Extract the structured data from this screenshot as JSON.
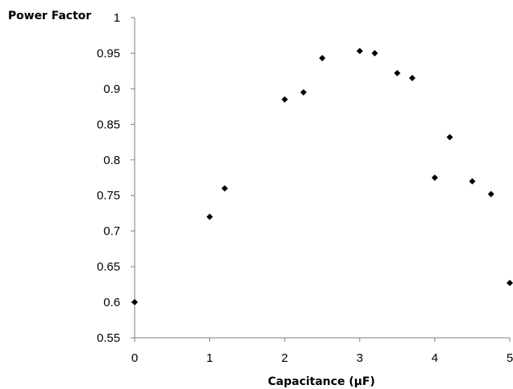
{
  "chart_data": {
    "type": "scatter",
    "title": "",
    "xlabel": "Capacitance (µF)",
    "ylabel": "Power Factor",
    "xlim": [
      0,
      5
    ],
    "ylim": [
      0.55,
      1
    ],
    "x_ticks": [
      0,
      1,
      2,
      3,
      4,
      5
    ],
    "x_tick_labels": [
      "0",
      "1",
      "2",
      "3",
      "4",
      "5"
    ],
    "y_ticks": [
      0.55,
      0.6,
      0.65,
      0.7,
      0.75,
      0.8,
      0.85,
      0.9,
      0.95,
      1
    ],
    "y_tick_labels": [
      "0.55",
      "0.6",
      "0.65",
      "0.7",
      "0.75",
      "0.8",
      "0.85",
      "0.9",
      "0.95",
      "1"
    ],
    "grid": false,
    "legend": false,
    "series": [
      {
        "marker": "diamond",
        "color": "#000000",
        "points": [
          {
            "x": 0,
            "y": 0.6
          },
          {
            "x": 1.0,
            "y": 0.72
          },
          {
            "x": 1.2,
            "y": 0.76
          },
          {
            "x": 2.0,
            "y": 0.885
          },
          {
            "x": 2.25,
            "y": 0.895
          },
          {
            "x": 2.5,
            "y": 0.943
          },
          {
            "x": 3.0,
            "y": 0.953
          },
          {
            "x": 3.2,
            "y": 0.95
          },
          {
            "x": 3.5,
            "y": 0.922
          },
          {
            "x": 3.7,
            "y": 0.915
          },
          {
            "x": 4.0,
            "y": 0.775
          },
          {
            "x": 4.2,
            "y": 0.832
          },
          {
            "x": 4.5,
            "y": 0.77
          },
          {
            "x": 4.75,
            "y": 0.752
          },
          {
            "x": 5.0,
            "y": 0.627
          }
        ]
      }
    ]
  }
}
